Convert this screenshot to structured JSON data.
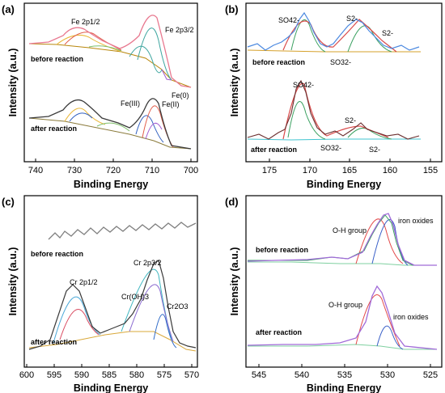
{
  "figure": {
    "panels": [
      {
        "id": "a",
        "label": "(a)",
        "xlabel": "Binding Energy",
        "ylabel": "Intensity (a.u.)",
        "xticks": [
          740,
          730,
          720,
          710,
          700
        ],
        "annotations": {
          "fe2p12": "Fe 2p1/2",
          "fe2p32": "Fe 2p3/2",
          "before": "before reaction",
          "fe0": "Fe(0)",
          "feIII": "Fe(III)",
          "feII": "Fe(II)",
          "after": "after reaction"
        }
      },
      {
        "id": "b",
        "label": "(b)",
        "xlabel": "Binding Energy",
        "ylabel": "Intensity (a.u.)",
        "xticks": [
          175,
          170,
          165,
          160,
          155
        ],
        "annotations": {
          "so4_top": "SO42-",
          "s2_top_1": "S2-",
          "s2_top_2": "S2-",
          "so3_top": "SO32-",
          "before": "before reaction",
          "so4_bot": "SO42-",
          "s2_bot_1": "S2-",
          "so3_bot": "SO32-",
          "s2_bot_2": "S2-",
          "after": "after reaction"
        }
      },
      {
        "id": "c",
        "label": "(c)",
        "xlabel": "Binding Energy",
        "ylabel": "Intensity (a.u.)",
        "xticks": [
          600,
          595,
          590,
          585,
          580,
          575,
          570
        ],
        "annotations": {
          "before": "before reaction",
          "cr2p32": "Cr 2p3/2",
          "cr2p12": "Cr 2p1/2",
          "croh3": "Cr(OH)3",
          "cr2o3": "Cr2O3",
          "after": "after reaction"
        }
      },
      {
        "id": "d",
        "label": "(d)",
        "xlabel": "Binding Energy",
        "ylabel": "Intensity (a.u.)",
        "xticks": [
          545,
          540,
          535,
          530,
          525
        ],
        "annotations": {
          "oh_top": "O-H group",
          "iron_top": "iron oxides",
          "before": "before reaction",
          "oh_bot": "O-H group",
          "iron_bot": "iron oxides",
          "after": "after reaction"
        }
      }
    ]
  },
  "chart_data": [
    {
      "panel": "a",
      "type": "line",
      "xlabel": "Binding Energy",
      "ylabel": "Intensity (a.u.)",
      "xlim": [
        744,
        699
      ],
      "xticks": [
        740,
        730,
        720,
        710,
        700
      ],
      "y_ticks_shown": false,
      "colors": {
        "raw": "#e8788f",
        "fit": "#3a8a9a",
        "background": "#b8860b",
        "component_red": "#e15b48",
        "component_yellow": "#e9b637",
        "component_green": "#7fbf6a",
        "component_teal": "#3fa6a0",
        "component_blue": "#3060c0",
        "component_purple": "#a05ad0",
        "envelope": "#8a7a3a"
      },
      "series": [
        {
          "name": "before reaction",
          "x": [
            744,
            735,
            731,
            727,
            724,
            721,
            718,
            715,
            713,
            711,
            710,
            708,
            706,
            704,
            702,
            700
          ],
          "y": [
            0.05,
            0.07,
            0.13,
            0.28,
            0.24,
            0.18,
            0.14,
            0.19,
            0.58,
            0.9,
            0.96,
            0.5,
            0.14,
            0.05,
            0.03,
            0.03
          ]
        },
        {
          "name": "after reaction",
          "x": [
            744,
            735,
            731,
            727,
            725,
            722,
            719,
            716,
            713,
            711,
            710,
            708,
            706,
            704,
            702,
            700
          ],
          "y": [
            0.06,
            0.08,
            0.14,
            0.2,
            0.37,
            0.25,
            0.18,
            0.18,
            0.2,
            0.42,
            0.5,
            0.22,
            0.06,
            0.02,
            0.01,
            0.01
          ]
        }
      ]
    },
    {
      "panel": "b",
      "type": "line",
      "xlabel": "Binding Energy",
      "ylabel": "Intensity (a.u.)",
      "xlim": [
        178,
        154
      ],
      "xticks": [
        175,
        170,
        165,
        160,
        155
      ],
      "y_ticks_shown": false,
      "colors": {
        "before_raw": "#4a88e0",
        "after_raw": "#6b2e2e",
        "fit": "#d94a4a",
        "background": "#d6a12b",
        "baseline": "#40c4d0",
        "component_green": "#3aa060"
      },
      "series": [
        {
          "name": "before reaction",
          "x": [
            178,
            174,
            172,
            170,
            169,
            168,
            167,
            166,
            165,
            164,
            163,
            162,
            161,
            160,
            158,
            156
          ],
          "y": [
            0.05,
            0.06,
            0.1,
            0.3,
            0.62,
            0.68,
            0.55,
            0.28,
            0.2,
            0.35,
            0.45,
            0.38,
            0.22,
            0.12,
            0.06,
            0.04
          ]
        },
        {
          "name": "after reaction",
          "x": [
            178,
            174,
            172,
            170,
            169,
            168,
            167,
            166,
            165,
            164,
            163,
            162,
            161,
            160,
            158,
            156
          ],
          "y": [
            0.04,
            0.05,
            0.08,
            0.25,
            0.75,
            0.9,
            0.6,
            0.2,
            0.1,
            0.12,
            0.15,
            0.11,
            0.07,
            0.05,
            0.04,
            0.04
          ]
        }
      ]
    },
    {
      "panel": "c",
      "type": "line",
      "xlabel": "Binding Energy",
      "ylabel": "Intensity (a.u.)",
      "xlim": [
        600,
        569
      ],
      "xticks": [
        600,
        595,
        590,
        585,
        580,
        575,
        570
      ],
      "y_ticks_shown": false,
      "colors": {
        "before_raw": "#808080",
        "after_raw": "#3a3a3a",
        "fit": "#4aa8d8",
        "background": "#d9a83a",
        "component_red": "#d94a60",
        "component_cyan": "#3fb6c0",
        "component_purple": "#8a6ad0",
        "component_blue": "#2f6bc8"
      },
      "series": [
        {
          "name": "before reaction",
          "x": [
            595,
            590,
            585,
            580,
            575,
            570
          ],
          "y": [
            0.8,
            0.81,
            0.82,
            0.83,
            0.84,
            0.85
          ]
        },
        {
          "name": "after reaction",
          "x": [
            595,
            592,
            590,
            588,
            587,
            585,
            583,
            581,
            579,
            578,
            577,
            576,
            575,
            573,
            571,
            570
          ],
          "y": [
            0.05,
            0.08,
            0.16,
            0.28,
            0.3,
            0.22,
            0.2,
            0.22,
            0.34,
            0.56,
            0.62,
            0.5,
            0.25,
            0.12,
            0.06,
            0.05
          ]
        }
      ]
    },
    {
      "panel": "d",
      "type": "line",
      "xlabel": "Binding Energy",
      "ylabel": "Intensity (a.u.)",
      "xlim": [
        547,
        524
      ],
      "xticks": [
        545,
        540,
        535,
        530,
        525
      ],
      "y_ticks_shown": false,
      "colors": {
        "raw": "#a06ad8",
        "oh_component": "#e34a4a",
        "iron_oxide": "#3a60c8",
        "fit_before": "#3aa060",
        "fit_after": "#a06ad8",
        "baseline": "#7fd0a0"
      },
      "series": [
        {
          "name": "before reaction",
          "x": [
            547,
            540,
            535,
            533,
            532,
            531,
            530.5,
            530,
            529.5,
            529,
            528,
            526,
            525
          ],
          "y": [
            0.55,
            0.57,
            0.59,
            0.65,
            0.78,
            0.9,
            0.98,
            1.0,
            0.95,
            0.8,
            0.62,
            0.58,
            0.58
          ]
        },
        {
          "name": "after reaction",
          "x": [
            547,
            540,
            535,
            533,
            532,
            531.5,
            531,
            530.5,
            530,
            529.5,
            529,
            528,
            526,
            525
          ],
          "y": [
            0.06,
            0.07,
            0.09,
            0.18,
            0.38,
            0.48,
            0.46,
            0.38,
            0.3,
            0.2,
            0.12,
            0.09,
            0.08,
            0.08
          ]
        }
      ]
    }
  ]
}
